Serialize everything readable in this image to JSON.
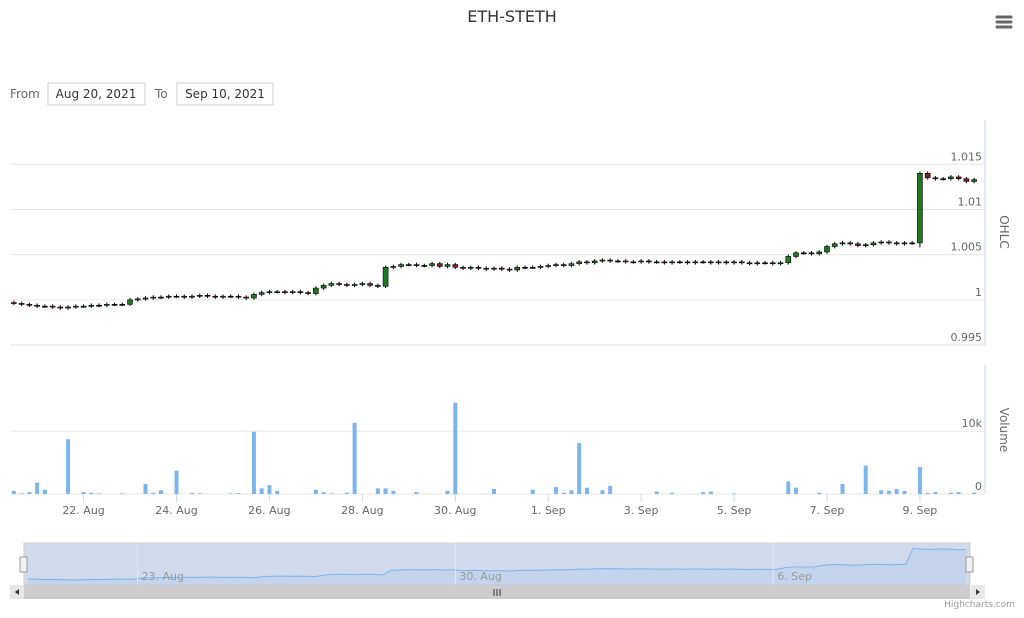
{
  "range_selector": {
    "from_label": "From",
    "from": "Aug 20, 2021",
    "to_label": "To",
    "to": "Sep 10, 2021"
  },
  "credits": "Highcharts.com",
  "chart_data": {
    "type": "candlestick",
    "title": "ETH-STETH",
    "y_title": "OHLC",
    "up_color": "#1e7a1e",
    "down_color": "#8b1a1a",
    "grid": true,
    "ylim": [
      0.995,
      1.0199
    ],
    "yticks": [
      0.995,
      1,
      1.005,
      1.01,
      1.015
    ],
    "categories": [
      null,
      null,
      null,
      null,
      null,
      null,
      null,
      null,
      null,
      "22. Aug",
      null,
      null,
      null,
      null,
      null,
      null,
      null,
      null,
      null,
      null,
      null,
      "24. Aug",
      null,
      null,
      null,
      null,
      null,
      null,
      null,
      null,
      null,
      null,
      null,
      "26. Aug",
      null,
      null,
      null,
      null,
      null,
      null,
      null,
      null,
      null,
      null,
      null,
      "28. Aug",
      null,
      null,
      null,
      null,
      null,
      null,
      null,
      null,
      null,
      null,
      null,
      "30. Aug",
      null,
      null,
      null,
      null,
      null,
      null,
      null,
      null,
      null,
      null,
      null,
      "1. Sep",
      null,
      null,
      null,
      null,
      null,
      null,
      null,
      null,
      null,
      null,
      null,
      "3. Sep",
      null,
      null,
      null,
      null,
      null,
      null,
      null,
      null,
      null,
      null,
      null,
      "5. Sep",
      null,
      null,
      null,
      null,
      null,
      null,
      null,
      null,
      null,
      null,
      null,
      "7. Sep",
      null,
      null,
      null,
      null,
      null,
      null,
      null,
      null,
      null,
      null,
      null,
      "9. Sep",
      null,
      null,
      null,
      null,
      null,
      null,
      null
    ],
    "open": [
      0.9997,
      0.9996,
      0.9995,
      0.9994,
      0.9993,
      0.9993,
      0.9992,
      0.9991,
      0.9992,
      0.9993,
      0.9993,
      0.9994,
      0.9994,
      0.9995,
      0.9995,
      0.9995,
      1.0,
      1.0001,
      1.0002,
      1.0003,
      1.0003,
      1.0004,
      1.0004,
      1.0003,
      1.0004,
      1.0005,
      1.0004,
      1.0003,
      1.0004,
      1.0004,
      1.0003,
      1.0002,
      1.0006,
      1.0008,
      1.0009,
      1.0009,
      1.0008,
      1.0009,
      1.0008,
      1.0007,
      1.0013,
      1.0016,
      1.0018,
      1.0017,
      1.0016,
      1.0017,
      1.0018,
      1.0016,
      1.0015,
      1.0036,
      1.0037,
      1.0039,
      1.0039,
      1.0038,
      1.0038,
      1.004,
      1.0037,
      1.0039,
      1.0036,
      1.0035,
      1.0036,
      1.0035,
      1.0034,
      1.0035,
      1.0034,
      1.0033,
      1.0036,
      1.0036,
      1.0036,
      1.0037,
      1.0038,
      1.0039,
      1.0038,
      1.004,
      1.0042,
      1.0041,
      1.0043,
      1.0044,
      1.0043,
      1.0043,
      1.0042,
      1.0042,
      1.0043,
      1.0042,
      1.0042,
      1.0041,
      1.0042,
      1.0042,
      1.0041,
      1.0042,
      1.0042,
      1.0041,
      1.0042,
      1.0041,
      1.0042,
      1.0041,
      1.004,
      1.0041,
      1.0041,
      1.004,
      1.0041,
      1.0048,
      1.0052,
      1.0052,
      1.0051,
      1.0053,
      1.0059,
      1.0062,
      1.0063,
      1.0062,
      1.006,
      1.0061,
      1.0063,
      1.0064,
      1.0063,
      1.0062,
      1.0063,
      1.0063,
      1.014,
      1.0135,
      1.0134,
      1.0134,
      1.0136,
      1.0134,
      1.0131
    ],
    "high": [
      0.9999,
      0.9998,
      0.9997,
      0.9996,
      0.9995,
      0.9995,
      0.9994,
      0.9994,
      0.9995,
      0.9995,
      0.9996,
      0.9996,
      0.9997,
      0.9997,
      0.9997,
      1.0002,
      1.0003,
      1.0004,
      1.0005,
      1.0005,
      1.0006,
      1.0006,
      1.0006,
      1.0006,
      1.0007,
      1.0007,
      1.0006,
      1.0006,
      1.0006,
      1.0006,
      1.0005,
      1.0008,
      1.001,
      1.0011,
      1.0011,
      1.0011,
      1.0011,
      1.0011,
      1.001,
      1.0015,
      1.0018,
      1.002,
      1.002,
      1.0019,
      1.0019,
      1.002,
      1.002,
      1.0018,
      1.0038,
      1.0039,
      1.0041,
      1.0041,
      1.0041,
      1.004,
      1.0042,
      1.0042,
      1.0041,
      1.0041,
      1.0038,
      1.0038,
      1.0038,
      1.0037,
      1.0037,
      1.0037,
      1.0036,
      1.0038,
      1.0038,
      1.0038,
      1.0039,
      1.004,
      1.0041,
      1.0041,
      1.0042,
      1.0044,
      1.0044,
      1.0045,
      1.0046,
      1.0046,
      1.0045,
      1.0045,
      1.0044,
      1.0045,
      1.0045,
      1.0044,
      1.0044,
      1.0044,
      1.0044,
      1.0044,
      1.0044,
      1.0044,
      1.0044,
      1.0044,
      1.0044,
      1.0044,
      1.0044,
      1.0043,
      1.0043,
      1.0043,
      1.0043,
      1.0043,
      1.005,
      1.0054,
      1.0054,
      1.0054,
      1.0055,
      1.0061,
      1.0064,
      1.0065,
      1.0065,
      1.0064,
      1.0063,
      1.0065,
      1.0066,
      1.0066,
      1.0065,
      1.0065,
      1.0065,
      1.0142,
      1.0142,
      1.0137,
      1.0136,
      1.0138,
      1.0138,
      1.0136,
      1.0135
    ],
    "low": [
      0.9994,
      0.9993,
      0.9992,
      0.9991,
      0.9991,
      0.999,
      0.9989,
      0.9989,
      0.999,
      0.9991,
      0.9991,
      0.9992,
      0.9992,
      0.9993,
      0.9993,
      0.9993,
      0.9998,
      0.9999,
      1.0,
      1.0001,
      1.0001,
      1.0002,
      1.0001,
      1.0001,
      1.0002,
      1.0002,
      1.0001,
      1.0001,
      1.0002,
      1.0001,
      1.0,
      1.0,
      1.0004,
      1.0006,
      1.0007,
      1.0006,
      1.0006,
      1.0006,
      1.0005,
      1.0005,
      1.0011,
      1.0014,
      1.0015,
      1.0014,
      1.0014,
      1.0015,
      1.0014,
      1.0013,
      1.0013,
      1.0034,
      1.0035,
      1.0037,
      1.0036,
      1.0036,
      1.0036,
      1.0035,
      1.0035,
      1.0034,
      1.0033,
      1.0033,
      1.0033,
      1.0032,
      1.0032,
      1.0032,
      1.0031,
      1.0031,
      1.0034,
      1.0034,
      1.0034,
      1.0035,
      1.0036,
      1.0036,
      1.0036,
      1.0038,
      1.0039,
      1.0039,
      1.0041,
      1.0041,
      1.0041,
      1.004,
      1.004,
      1.004,
      1.004,
      1.004,
      1.0039,
      1.0039,
      1.004,
      1.0039,
      1.0039,
      1.004,
      1.0039,
      1.0039,
      1.0039,
      1.0039,
      1.0039,
      1.0038,
      1.0038,
      1.0039,
      1.0038,
      1.0038,
      1.0039,
      1.0046,
      1.005,
      1.0049,
      1.0049,
      1.0051,
      1.0057,
      1.006,
      1.006,
      1.0058,
      1.0058,
      1.0059,
      1.0061,
      1.0061,
      1.006,
      1.006,
      1.0061,
      1.0058,
      1.0133,
      1.0132,
      1.0132,
      1.0132,
      1.0132,
      1.0129,
      1.0129
    ],
    "close": [
      0.9996,
      0.9995,
      0.9994,
      0.9993,
      0.9993,
      0.9992,
      0.9991,
      0.9992,
      0.9993,
      0.9993,
      0.9994,
      0.9994,
      0.9995,
      0.9995,
      0.9995,
      1.0,
      1.0001,
      1.0002,
      1.0003,
      1.0003,
      1.0004,
      1.0004,
      1.0003,
      1.0004,
      1.0005,
      1.0004,
      1.0003,
      1.0004,
      1.0004,
      1.0003,
      1.0002,
      1.0006,
      1.0008,
      1.0009,
      1.0009,
      1.0008,
      1.0009,
      1.0008,
      1.0007,
      1.0013,
      1.0016,
      1.0018,
      1.0017,
      1.0016,
      1.0017,
      1.0018,
      1.0016,
      1.0015,
      1.0036,
      1.0037,
      1.0039,
      1.0039,
      1.0038,
      1.0038,
      1.004,
      1.0037,
      1.0039,
      1.0036,
      1.0035,
      1.0036,
      1.0035,
      1.0034,
      1.0035,
      1.0034,
      1.0033,
      1.0036,
      1.0036,
      1.0036,
      1.0037,
      1.0038,
      1.0039,
      1.0038,
      1.004,
      1.0042,
      1.0041,
      1.0043,
      1.0044,
      1.0043,
      1.0043,
      1.0042,
      1.0042,
      1.0043,
      1.0042,
      1.0042,
      1.0041,
      1.0042,
      1.0042,
      1.0041,
      1.0042,
      1.0042,
      1.0041,
      1.0042,
      1.0041,
      1.0042,
      1.0041,
      1.004,
      1.0041,
      1.0041,
      1.004,
      1.0041,
      1.0048,
      1.0052,
      1.0052,
      1.0051,
      1.0053,
      1.0059,
      1.0062,
      1.0063,
      1.0062,
      1.006,
      1.0061,
      1.0063,
      1.0064,
      1.0063,
      1.0062,
      1.0063,
      1.0063,
      1.014,
      1.0135,
      1.0134,
      1.0134,
      1.0136,
      1.0134,
      1.0131,
      1.0133
    ],
    "volume": {
      "title": "Volume",
      "color": "#7cb5ec",
      "ylim": [
        0,
        20500
      ],
      "yticks": [
        0,
        {
          "value": 10000,
          "label": "10k"
        }
      ],
      "values": [
        500,
        100,
        300,
        1800,
        700,
        0,
        0,
        8700,
        0,
        300,
        200,
        100,
        0,
        0,
        100,
        0,
        0,
        1600,
        200,
        600,
        0,
        3700,
        0,
        150,
        100,
        0,
        0,
        0,
        100,
        150,
        0,
        9900,
        900,
        1400,
        500,
        0,
        0,
        0,
        0,
        700,
        300,
        100,
        0,
        200,
        11300,
        0,
        0,
        900,
        900,
        500,
        0,
        0,
        300,
        0,
        0,
        0,
        500,
        14500,
        0,
        0,
        0,
        0,
        800,
        0,
        0,
        0,
        0,
        700,
        0,
        0,
        1100,
        200,
        600,
        8100,
        1000,
        0,
        600,
        1300,
        0,
        0,
        0,
        0,
        0,
        400,
        0,
        200,
        0,
        0,
        0,
        300,
        400,
        0,
        0,
        100,
        0,
        0,
        0,
        0,
        0,
        0,
        2000,
        1000,
        0,
        0,
        200,
        0,
        0,
        1600,
        0,
        0,
        4500,
        0,
        600,
        500,
        800,
        500,
        0,
        4300,
        200,
        300,
        0,
        200,
        300,
        0,
        200
      ]
    },
    "navigator": {
      "xticks": [
        {
          "value": 15,
          "label": "23. Aug"
        },
        {
          "value": 57,
          "label": "30. Aug"
        },
        {
          "value": 99,
          "label": "6. Sep"
        }
      ]
    }
  }
}
